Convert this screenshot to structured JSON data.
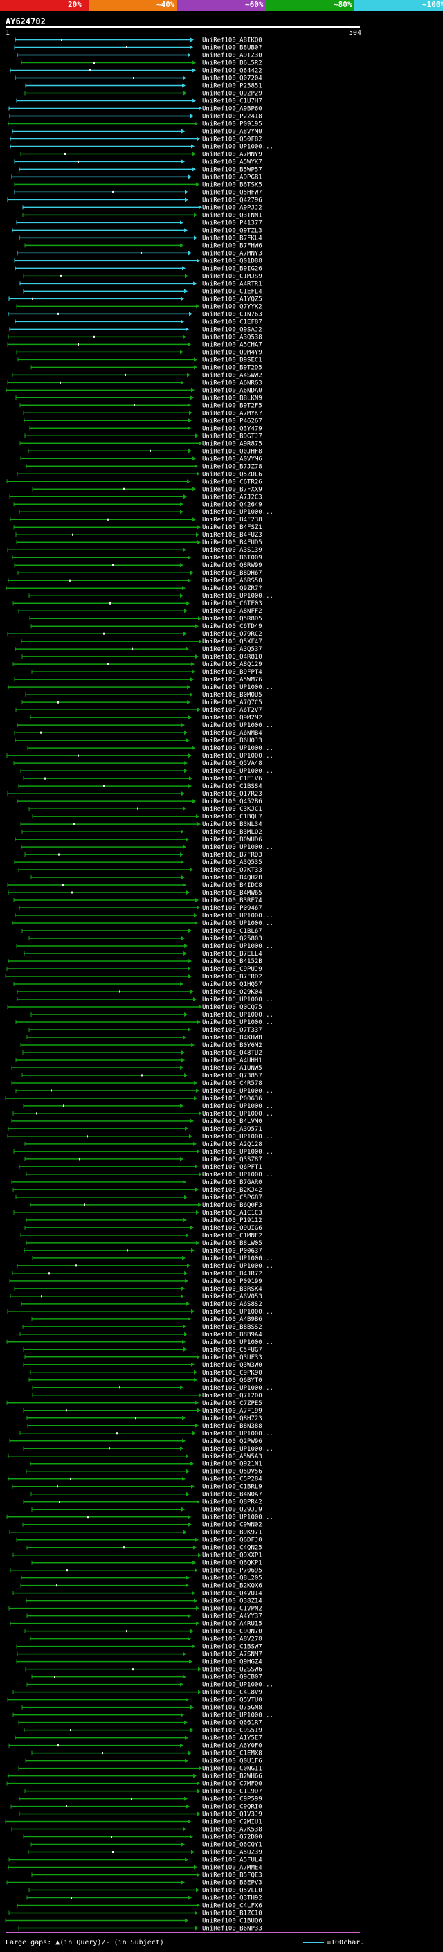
{
  "header": {
    "scale_labels": [
      "20%",
      "~40%",
      "~60%",
      "~80%",
      "~100%"
    ],
    "scale_colors": [
      "#e01a1a",
      "#ee7a12",
      "#9a3fb8",
      "#11a111",
      "#3ccfe3"
    ],
    "query_id": "AY624702",
    "query_start": "1",
    "query_end": "504"
  },
  "footer": {
    "gaps_text": "Large gaps: ▲(in Query)/- (in Subject)",
    "scale_text": "=100char."
  },
  "hit_colors": {
    "cyan": "#3ccfe3",
    "green": "#11a111"
  },
  "hits": [
    "UniRef100_A8IKQ0",
    "UniRef100_B8UB0?",
    "UniRef100_A9TZ30",
    "UniRef100_B6L5R2",
    "UniRef100_Q64422",
    "UniRef100_Q07204",
    "UniRef100_P25851",
    "UniRef100_Q92P29",
    "UniRef100_C1U7H7",
    "UniRef100_A9BP60",
    "UniRef100_P22418",
    "UniRef100_P09195",
    "UniRef100_A8VYM0",
    "UniRef100_Q50F82",
    "UniRef100_UP1000...",
    "UniRef100_A7MNY9",
    "UniRef100_A5WYK7",
    "UniRef100_B5WP57",
    "UniRef100_A9PGB1",
    "UniRef100_B6TSK5",
    "UniRef100_Q5HFW7",
    "UniRef100_Q42796",
    "UniRef100_A9PJJ2",
    "UniRef100_Q3TNN1",
    "UniRef100_P41377",
    "UniRef100_Q9TZL3",
    "UniRef100_B7FKL4",
    "UniRef100_B7FHW6",
    "UniRef100_A7MNY3",
    "UniRef100_Q01D88",
    "UniRef100_B9IG26",
    "UniRef100_C1MJS9",
    "UniRef100_A4RTR1",
    "UniRef100_C1EFL4",
    "UniRef100_A1YQZ5",
    "UniRef100_Q7YYK2",
    "UniRef100_C1N763",
    "UniRef100_C1EF87",
    "UniRef100_Q9SAJ2",
    "UniRef100_A3Q538",
    "UniRef100_A5CHA7",
    "UniRef100_Q9M4Y9",
    "UniRef100_B9SEC1",
    "UniRef100_B9T2D5",
    "UniRef100_A4SWW2",
    "UniRef100_A6NRG3",
    "UniRef100_A6NDA0",
    "UniRef100_B8LKN9",
    "UniRef100_B9T2F5",
    "UniRef100_A7MYK?",
    "UniRef100_P46267",
    "UniRef100_Q3Y479",
    "UniRef100_B9GTJ7",
    "UniRef100_A9R875",
    "UniRef100_Q0JHF8",
    "UniRef100_A0VYM6",
    "UniRef100_B7JZ78",
    "UniRef100_Q5ZDL6",
    "UniRef100_C6TR26",
    "UniRef100_B7FXX9",
    "UniRef100_A7J2C3",
    "UniRef100_Q42649",
    "UniRef100_UP1000...",
    "UniRef100_B4F238",
    "UniRef100_B4FSZ1",
    "UniRef100_B4FUZ3",
    "UniRef100_B4FUD5",
    "UniRef100_A3S139",
    "UniRef100_B6T009",
    "UniRef100_Q8RW99",
    "UniRef100_B8DH67",
    "UniRef100_A6RS50",
    "UniRef100_Q9ZR7?",
    "UniRef100_UP1000...",
    "UniRef100_C6TE03",
    "UniRef100_A8NFF2",
    "UniRef100_Q5R8D5",
    "UniRef100_C6TD49",
    "UniRef100_Q79RC2",
    "UniRef100_Q5XF47",
    "UniRef100_A3Q537",
    "UniRef100_Q4R810",
    "UniRef100_A8Q129",
    "UniRef100_B9FPT4",
    "UniRef100_A5WM76",
    "UniRef100_UP1000...",
    "UniRef100_B0MQU5",
    "UniRef100_A7Q7C5",
    "UniRef100_A6T2V7",
    "UniRef100_Q9M2M2",
    "UniRef100_UP1000...",
    "UniRef100_A6NMB4",
    "UniRef100_B6U0J3",
    "UniRef100_UP1000...",
    "UniRef100_UP1000...",
    "UniRef100_Q5VA48",
    "UniRef100_UP1000...",
    "UniRef100_C1E1V6",
    "UniRef100_C1BSS4",
    "UniRef100_Q17R23",
    "UniRef100_Q452B6",
    "UniRef100_C3KJC1",
    "UniRef100_C1BQL7",
    "UniRef100_B3NL34",
    "UniRef100_B3MLQ2",
    "UniRef100_B0WUD6",
    "UniRef100_UP1000...",
    "UniRef100_B7FRD3",
    "UniRef100_A3Q535",
    "UniRef100_Q7KT33",
    "UniRef100_B4QH28",
    "UniRef100_B4IDC8",
    "UniRef100_B4MW65",
    "UniRef100_B3RE74",
    "UniRef100_P09467",
    "UniRef100_UP1000...",
    "UniRef100_UP1000...",
    "UniRef100_C1BL67",
    "UniRef100_Q25803",
    "UniRef100_UP1000...",
    "UniRef100_B7ELL4",
    "UniRef100_B4152B",
    "UniRef100_C9PUJ9",
    "UniRef100_B7FRD2",
    "UniRef100_Q1HQ57",
    "UniRef100_Q29K04",
    "UniRef100_UP1000...",
    "UniRef100_Q0CQ75",
    "UniRef100_UP1000...",
    "UniRef100_UP1000...",
    "UniRef100_Q7T337",
    "UniRef100_B4KHW8",
    "UniRef100_B0Y6M2",
    "UniRef100_Q48TU2",
    "UniRef100_A4UHH1",
    "UniRef100_A1UNW5",
    "UniRef100_Q73857",
    "UniRef100_C4R578",
    "UniRef100_UP1000...",
    "UniRef100_P00636",
    "UniRef100_UP1000...",
    "UniRef100_UP1000...",
    "UniRef100_B4LVM0",
    "UniRef100_A3Q571",
    "UniRef100_UP1000...",
    "UniRef100_A2Q128",
    "UniRef100_UP1000...",
    "UniRef100_Q3SZ87",
    "UniRef100_Q6PFT1",
    "UniRef100_UP1000...",
    "UniRef100_B7GAR0",
    "UniRef100_B2KJ42",
    "UniRef100_C5PG87",
    "UniRef100_B6Q0F3",
    "UniRef100_A1C1C3",
    "UniRef100_P19112",
    "UniRef100_Q9UIG6",
    "UniRef100_C1MNF2",
    "UniRef100_B8LW05",
    "UniRef100_P00637",
    "UniRef100_UP1000...",
    "UniRef100_UP1000...",
    "UniRef100_B4JR72",
    "UniRef100_P09199",
    "UniRef100_B3RSK4",
    "UniRef100_A6V053",
    "UniRef100_A6S8S2",
    "UniRef100_UP1000...",
    "UniRef100_A4B9B6",
    "UniRef100_B8BSS2",
    "UniRef100_B8B9A4",
    "UniRef100_UP1000...",
    "UniRef100_C5FUG7",
    "UniRef100_Q3UF33",
    "UniRef100_Q3W3W0",
    "UniRef100_C9PK90",
    "UniRef100_Q6BYT0",
    "UniRef100_UP1000...",
    "UniRef100_Q71200",
    "UniRef100_C7ZPE5",
    "UniRef100_A7F199",
    "UniRef100_Q8H723",
    "UniRef100_B8N388",
    "UniRef100_UP1000...",
    "UniRef100_Q2PW96",
    "UniRef100_UP1000...",
    "UniRef100_A5W5A3",
    "UniRef100_Q921N1",
    "UniRef100_Q5DV56",
    "UniRef100_C5P284",
    "UniRef100_C1BRL9",
    "UniRef100_B4N0A7",
    "UniRef100_Q8PR42",
    "UniRef100_Q29JJ9",
    "UniRef100_UP1000...",
    "UniRef100_C9WN02",
    "UniRef100_B9K971",
    "UniRef100_Q6DFJ0",
    "UniRef100_C4QN25",
    "UniRef100_Q9XXP1",
    "UniRef100_Q6QKP1",
    "UniRef100_P70695",
    "UniRef100_Q8L205",
    "UniRef100_B2KQX6",
    "UniRef100_Q4VU14",
    "UniRef100_O38Z14",
    "UniRef100_C1VPN2",
    "UniRef100_A4YY37",
    "UniRef100_A4RU15",
    "UniRef100_C9QN70",
    "UniRef100_A8V278",
    "UniRef100_C1BSW7",
    "UniRef100_A7SNM7",
    "UniRef100_Q9HGZ4",
    "UniRef100_Q2SSW6",
    "UniRef100_Q9CB07",
    "UniRef100_UP1000...",
    "UniRef100_C4L8V9",
    "UniRef100_Q5VTU0",
    "UniRef100_Q75GN8",
    "UniRef100_UP1000...",
    "UniRef100_Q661R7",
    "UniRef100_C9S519",
    "UniRef100_A1Y5E7",
    "UniRef100_A6Y0F0",
    "UniRef100_C1EMX8",
    "UniRef100_Q0U1F6",
    "UniRef100_C0NG11",
    "UniRef100_B2WH66",
    "UniRef100_C7MFQ0",
    "UniRef100_C1L9D7",
    "UniRef100_C9P599",
    "UniRef100_C9QRI0",
    "UniRef100_Q1V3J9",
    "UniRef100_C2MIU1",
    "UniRef100_A7K538",
    "UniRef100_Q72D00",
    "UniRef100_Q6CQY1",
    "UniRef100_A5UZ39",
    "UniRef100_A5FUL4",
    "UniRef100_A7MME4",
    "UniRef100_B5FQE3",
    "UniRef100_B6EPV3",
    "UniRef100_Q5VLL0",
    "UniRef100_Q3TH92",
    "UniRef100_C4LFX6",
    "UniRef100_B1ZC10",
    "UniRef100_C1BUQ6",
    "UniRef100_B6NP33"
  ]
}
